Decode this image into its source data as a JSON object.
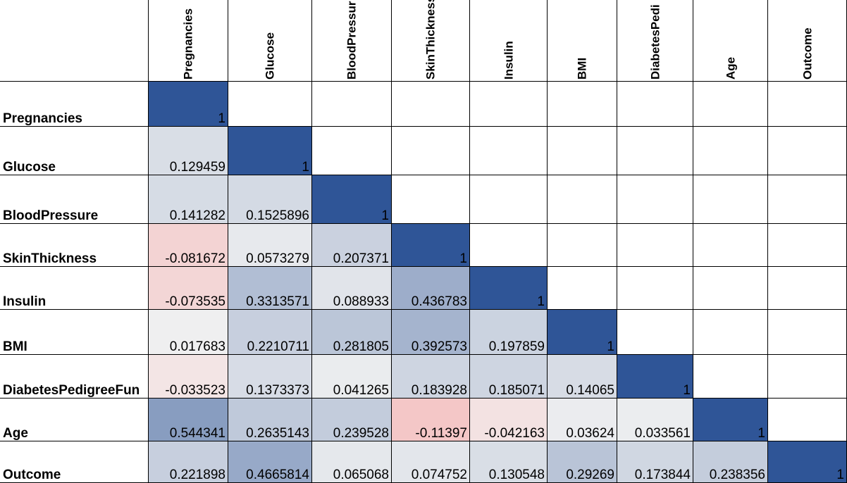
{
  "columns": [
    "Pregnancies",
    "Glucose",
    "BloodPressur",
    "SkinThickness",
    "Insulin",
    "BMI",
    "DiabetesPedi",
    "Age",
    "Outcome"
  ],
  "rows": [
    {
      "label": "Pregnancies",
      "values": [
        "1"
      ]
    },
    {
      "label": "Glucose",
      "values": [
        "0.129459",
        "1"
      ]
    },
    {
      "label": "BloodPressure",
      "values": [
        "0.141282",
        "0.1525896",
        "1"
      ]
    },
    {
      "label": "SkinThickness",
      "values": [
        "-0.081672",
        "0.0573279",
        "0.207371",
        "1"
      ]
    },
    {
      "label": "Insulin",
      "values": [
        "-0.073535",
        "0.3313571",
        "0.088933",
        "0.436783",
        "1"
      ]
    },
    {
      "label": "BMI",
      "values": [
        "0.017683",
        "0.2210711",
        "0.281805",
        "0.392573",
        "0.197859",
        "1"
      ]
    },
    {
      "label": "DiabetesPedigreeFun",
      "values": [
        "-0.033523",
        "0.1373373",
        "0.041265",
        "0.183928",
        "0.185071",
        "0.14065",
        "1"
      ]
    },
    {
      "label": "Age",
      "values": [
        "0.544341",
        "0.2635143",
        "0.239528",
        "-0.11397",
        "-0.042163",
        "0.03624",
        "0.033561",
        "1"
      ]
    },
    {
      "label": "Outcome",
      "values": [
        "0.221898",
        "0.4665814",
        "0.065068",
        "0.074752",
        "0.130548",
        "0.29269",
        "0.173844",
        "0.238356",
        "1"
      ]
    }
  ],
  "colors": {
    "positive_max": "#2f5597",
    "neutral": "#f2f2f2",
    "negative_max": "#f4c7c7",
    "grid_line": "#000000"
  }
}
